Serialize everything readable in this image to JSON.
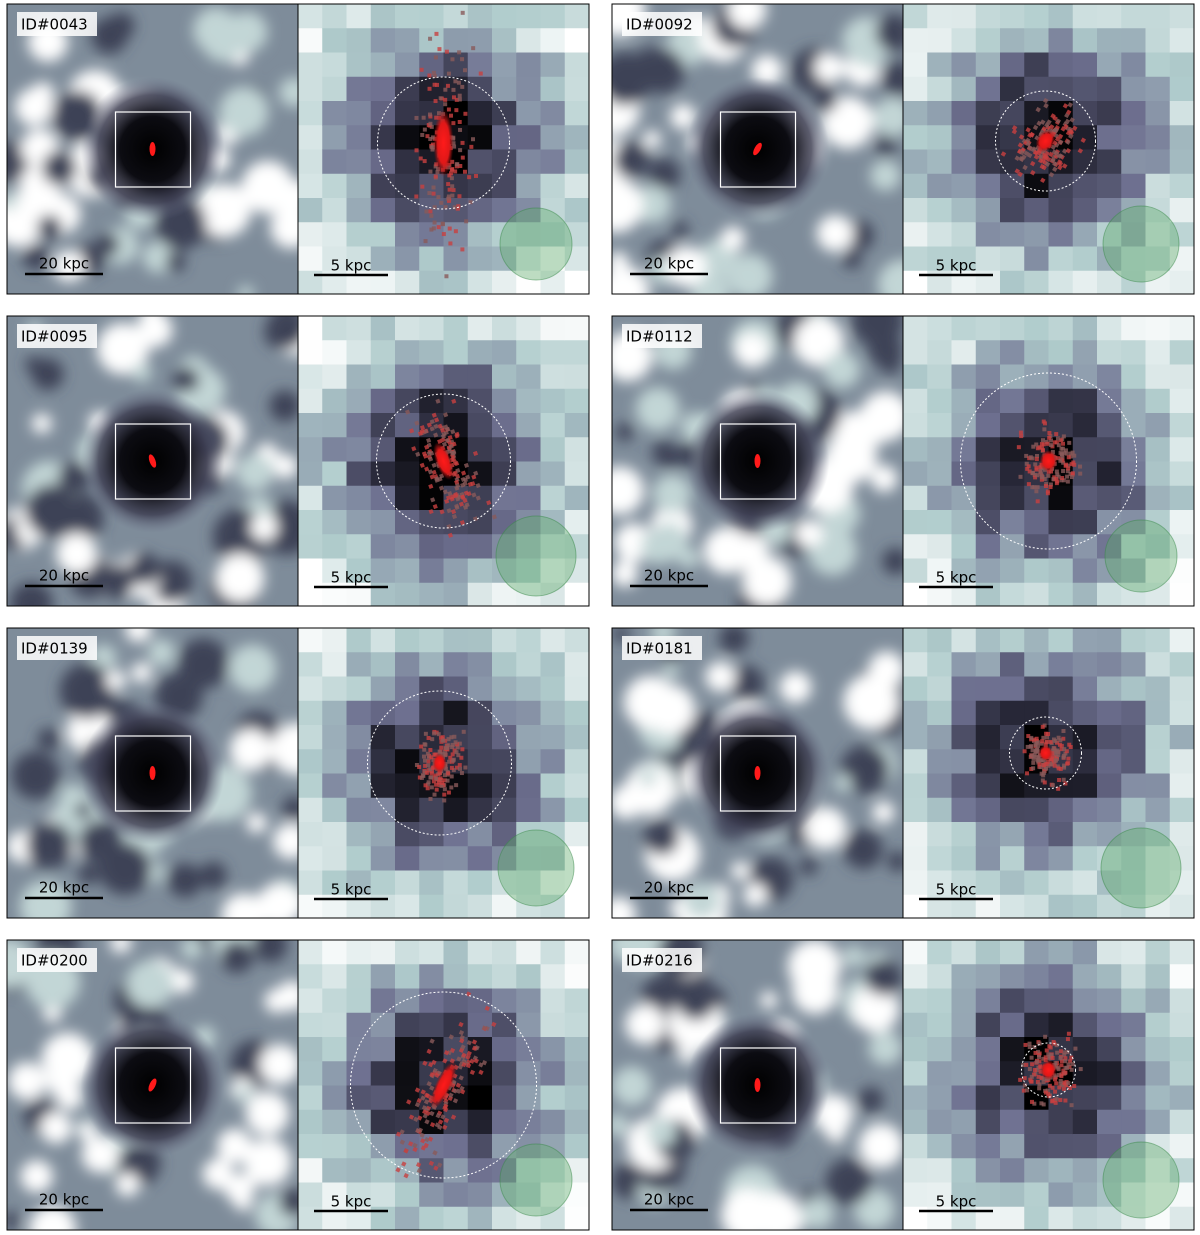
{
  "panels": [
    {
      "id": "ID#0043",
      "scale_left": "20 kpc",
      "scale_right": "5 kpc"
    },
    {
      "id": "ID#0092",
      "scale_left": "20 kpc",
      "scale_right": "5 kpc"
    },
    {
      "id": "ID#0095",
      "scale_left": "20 kpc",
      "scale_right": "5 kpc"
    },
    {
      "id": "ID#0112",
      "scale_left": "20 kpc",
      "scale_right": "5 kpc"
    },
    {
      "id": "ID#0139",
      "scale_left": "20 kpc",
      "scale_right": "5 kpc"
    },
    {
      "id": "ID#0181",
      "scale_left": "20 kpc",
      "scale_right": "5 kpc"
    },
    {
      "id": "ID#0200",
      "scale_left": "20 kpc",
      "scale_right": "5 kpc"
    },
    {
      "id": "ID#0216",
      "scale_left": "20 kpc",
      "scale_right": "5 kpc"
    }
  ]
}
